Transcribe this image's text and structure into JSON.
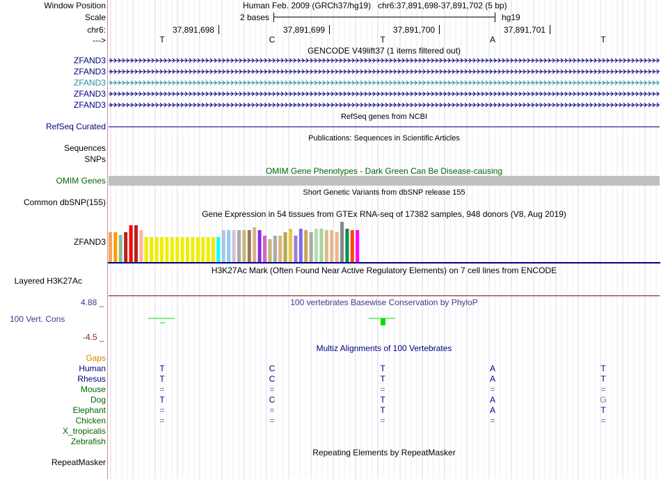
{
  "header": {
    "window_position_label": "Window Position",
    "scale_label": "Scale",
    "chrom_label": "chr6:",
    "strand_label": "--->",
    "position_title": "Human Feb. 2009 (GRCh37/hg19)   chr6:37,891,698-37,891,702 (5 bp)",
    "scale_text": "2 bases",
    "assembly": "hg19",
    "coords": [
      "37,891,698",
      "37,891,699",
      "37,891,700",
      "37,891,701"
    ],
    "bases": [
      "T",
      "C",
      "T",
      "A",
      "T"
    ]
  },
  "tracks": {
    "gencode_title": "GENCODE V49lift37 (1 items filtered out)",
    "gencode_items": [
      "ZFAND3",
      "ZFAND3",
      "ZFAND3",
      "ZFAND3",
      "ZFAND3"
    ],
    "refseq_title": "RefSeq genes from NCBI",
    "refseq_label": "RefSeq Curated",
    "pubs_title": "Publications: Sequences in Scientific Articles",
    "sequences_label": "Sequences",
    "snps_label": "SNPs",
    "omim_title": "OMIM Gene Phenotypes - Dark Green Can Be Disease-causing",
    "omim_label": "OMIM Genes",
    "dbsnp_title": "Short Genetic Variants from dbSNP release 155",
    "dbsnp_label": "Common dbSNP(155)",
    "gtex_title": "Gene Expression in 54 tissues from GTEx RNA-seq of 17382 samples, 948 donors (V8, Aug 2019)",
    "gtex_label": "ZFAND3",
    "h3k27ac_title": "H3K27Ac Mark (Often Found Near Active Regulatory Elements) on 7 cell lines from ENCODE",
    "h3k27ac_label": "Layered H3K27Ac",
    "phylop_max": "4.88 _",
    "phylop_min": "-4.5 _",
    "phylop_title": "100 vertebrates Basewise Conservation by PhyloP",
    "phylop_label": "100 Vert. Cons",
    "multiz_title": "Multiz Alignments of 100 Vertebrates",
    "gaps_label": "Gaps",
    "species": [
      {
        "name": "Human",
        "bases": [
          "T",
          "C",
          "T",
          "A",
          "T"
        ]
      },
      {
        "name": "Rhesus",
        "bases": [
          "T",
          "C",
          "T",
          "A",
          "T"
        ]
      },
      {
        "name": "Mouse",
        "bases": [
          "=",
          "=",
          "=",
          "=",
          "="
        ]
      },
      {
        "name": "Dog",
        "bases": [
          "T",
          "C",
          "T",
          "A",
          "G"
        ]
      },
      {
        "name": "Elephant",
        "bases": [
          "=",
          "=",
          "T",
          "A",
          "T"
        ]
      },
      {
        "name": "Chicken",
        "bases": [
          "=",
          "=",
          "=",
          "=",
          "="
        ]
      },
      {
        "name": "X_tropicalis",
        "bases": [
          "",
          "",
          "",
          "",
          ""
        ]
      },
      {
        "name": "Zebrafish",
        "bases": [
          "",
          "",
          "",
          "",
          ""
        ]
      }
    ],
    "repeat_title": "Repeating Elements by RepeatMasker",
    "repeat_label": "RepeatMasker"
  },
  "colors": {
    "navy": "#000080",
    "omim_green": "#006400",
    "teal": "#1e90a0",
    "phylop_blue": "#3a3a8c",
    "phylop_green": "#00dd00",
    "gaps_orange": "#e08000",
    "species_green": "#006400",
    "h3k27ac_line": "#8b0000",
    "omim_bar": "#c0c0c0"
  },
  "gtex_tissue_colors": [
    "#f4a460",
    "#ff9a00",
    "#8fbc8f",
    "#b22222",
    "#ff0000",
    "#b22222",
    "#ffb6a0",
    "#eeee00",
    "#eeee00",
    "#eeee00",
    "#eeee00",
    "#eeee00",
    "#eeee00",
    "#eeee00",
    "#eeee00",
    "#eeee00",
    "#eeee00",
    "#eeee00",
    "#eeee00",
    "#eeee00",
    "#eeee00",
    "#00ffff",
    "#b0c4de",
    "#87cefa",
    "#d8bfd8",
    "#aaaaaa",
    "#c8b478",
    "#9a7854",
    "#d2b48c",
    "#8a2be2",
    "#cc66cc",
    "#c8b478",
    "#aaaaaa",
    "#dcb478",
    "#b4aa50",
    "#e6c84a",
    "#9b7fd0",
    "#7b68ee",
    "#c8a850",
    "#aaaaaa",
    "#b0e0b0",
    "#aad2a0",
    "#ddbb88",
    "#e8b890",
    "#e8b890",
    "#888888",
    "#009050",
    "#ff4500",
    "#ff00ff",
    "#000000",
    "#cccccc",
    "#ffcc99",
    "#990066",
    "#666666"
  ],
  "gtex_values": [
    0.72,
    0.72,
    0.65,
    0.72,
    0.88,
    0.88,
    0.76,
    0.6,
    0.6,
    0.6,
    0.6,
    0.6,
    0.6,
    0.6,
    0.6,
    0.6,
    0.6,
    0.6,
    0.6,
    0.6,
    0.6,
    0.6,
    0.76,
    0.76,
    0.76,
    0.76,
    0.76,
    0.76,
    0.84,
    0.76,
    0.64,
    0.55,
    0.64,
    0.64,
    0.72,
    0.8,
    0.64,
    0.8,
    0.76,
    0.72,
    0.8,
    0.8,
    0.76,
    0.76,
    0.72,
    0.96,
    0.8,
    0.76,
    0.76,
    0,
    0,
    0,
    0,
    0
  ],
  "gtex_count": 49,
  "phylop_values": [
    0.02,
    0,
    -0.25,
    0,
    0
  ]
}
